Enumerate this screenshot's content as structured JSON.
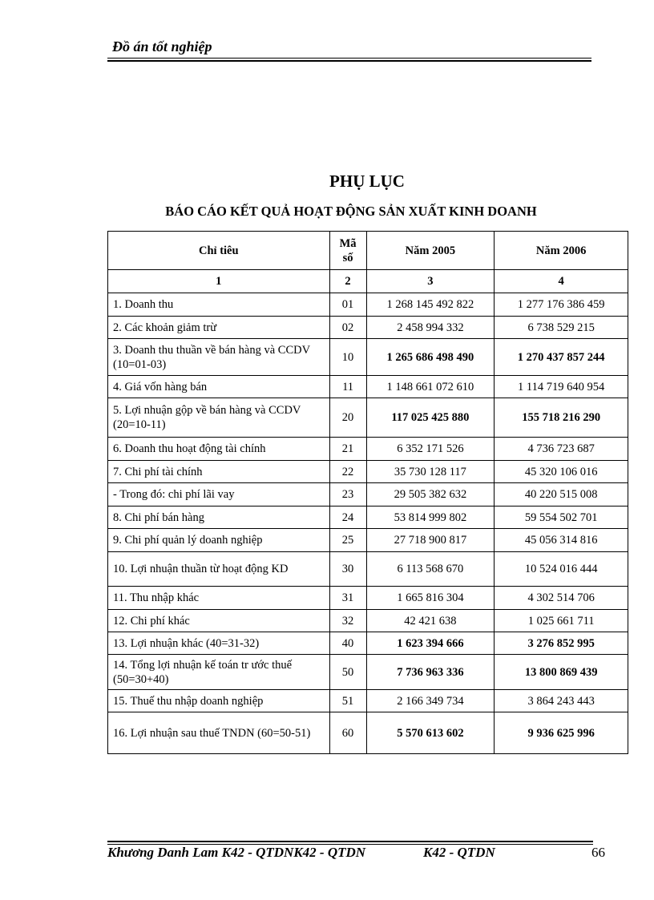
{
  "header": {
    "title": "Đồ án tốt nghiệp"
  },
  "title": "PHỤ LỤC",
  "subtitle": "BÁO CÁO KẾT QUẢ HOẠT ĐỘNG SẢN XUẤT KINH DOANH",
  "table": {
    "headers": [
      "Chỉ tiêu",
      "Mã số",
      "Năm 2005",
      "Năm 2006"
    ],
    "index_row": [
      "1",
      "2",
      "3",
      "4"
    ],
    "rows": [
      {
        "label": "1. Doanh thu",
        "code": "01",
        "y2005": "1 268 145 492 822",
        "y2006": "1 277 176 386 459",
        "bold": false
      },
      {
        "label": "2. Các khoản giảm trừ",
        "code": "02",
        "y2005": "2 458 994 332",
        "y2006": "6 738 529 215",
        "bold": false
      },
      {
        "label": "3. Doanh thu thuần về bán hàng và CCDV (10=01-03)",
        "code": "10",
        "y2005": "1 265 686 498 490",
        "y2006": "1 270 437 857 244",
        "bold": true
      },
      {
        "label": "4. Giá vốn hàng bán",
        "code": "11",
        "y2005": "1 148 661 072 610",
        "y2006": "1 114 719 640 954",
        "bold": false
      },
      {
        "label": "5. Lợi nhuận gộp về bán hàng và CCDV (20=10-11)",
        "code": "20",
        "y2005": "117 025 425 880",
        "y2006": "155 718 216 290",
        "bold": true
      },
      {
        "label": "6. Doanh thu hoạt động tài chính",
        "code": "21",
        "y2005": "6 352 171 526",
        "y2006": "4 736 723 687",
        "bold": false
      },
      {
        "label": "7. Chi phí tài chính",
        "code": "22",
        "y2005": "35 730 128 117",
        "y2006": "45 320 106 016",
        "bold": false
      },
      {
        "label": "- Trong đó: chi phí lãi vay",
        "code": "23",
        "y2005": "29 505 382 632",
        "y2006": "40 220 515 008",
        "bold": false
      },
      {
        "label": "8. Chi phí bán hàng",
        "code": "24",
        "y2005": "53 814 999 802",
        "y2006": "59 554 502 701",
        "bold": false
      },
      {
        "label": "9. Chi phí quản lý doanh nghiệp",
        "code": "25",
        "y2005": "27 718 900 817",
        "y2006": "45 056 314 816",
        "bold": false
      },
      {
        "label": "10. Lợi nhuận thuần từ hoạt động KD",
        "code": "30",
        "y2005": "6 113 568 670",
        "y2006": "10 524 016 444",
        "bold": false
      },
      {
        "label": "11. Thu nhập khác",
        "code": "31",
        "y2005": "1 665 816 304",
        "y2006": "4 302 514 706",
        "bold": false
      },
      {
        "label": "12. Chi phí khác",
        "code": "32",
        "y2005": "42 421 638",
        "y2006": "1 025 661 711",
        "bold": false
      },
      {
        "label": "13. Lợi nhuận khác (40=31-32)",
        "code": "40",
        "y2005": "1 623 394 666",
        "y2006": "3 276 852 995",
        "bold": true
      },
      {
        "label": "14. Tổng lợi nhuận kế toán tr   ước thuế (50=30+40)",
        "code": "50",
        "y2005": "7 736 963 336",
        "y2006": "13 800 869 439",
        "bold": true
      },
      {
        "label": "15. Thuế thu nhập doanh nghiệp",
        "code": "51",
        "y2005": "2 166 349 734",
        "y2006": "3 864 243 443",
        "bold": false
      },
      {
        "label": "16. Lợi nhuận sau thuế TNDN (60=50-51)",
        "code": "60",
        "y2005": "5 570 613 602",
        "y2006": "9 936 625 996",
        "bold": true
      }
    ]
  },
  "footer": {
    "author": "Khương Danh Lam K42 - QTDNK42 - QTDN",
    "class": "K42 - QTDN",
    "page": "66"
  }
}
